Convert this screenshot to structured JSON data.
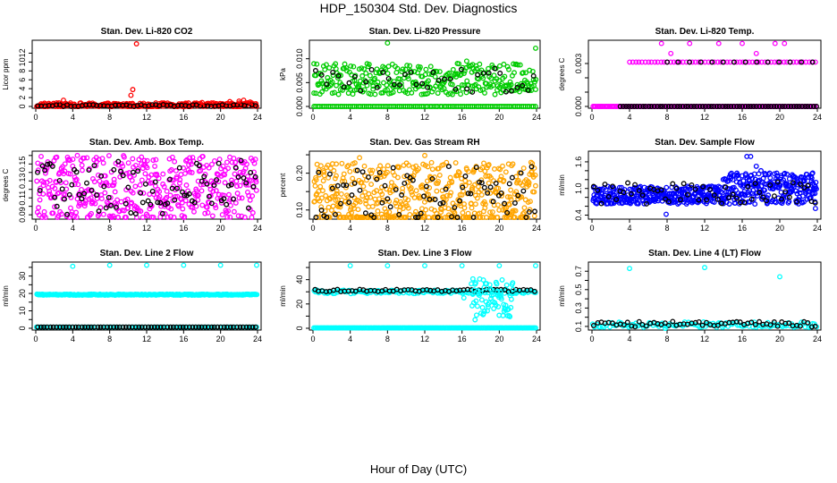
{
  "page": {
    "title": "HDP_150304  Std. Dev. Diagnostics",
    "xlabel": "Hour of Day (UTC)"
  },
  "chart_data": [
    {
      "type": "scatter",
      "title": "Stan. Dev. Li-820 CO2",
      "ylabel": "Licor ppm",
      "color": "#ff0000",
      "xlim": [
        0,
        24
      ],
      "xticks": [
        0,
        4,
        8,
        12,
        16,
        20,
        24
      ],
      "ylim": [
        0,
        14.5
      ],
      "yticks": [
        0,
        2,
        4,
        6,
        8,
        10,
        12
      ],
      "ytick_labels": [
        "0",
        "2",
        "4",
        "6",
        "8",
        "10",
        "12"
      ],
      "series": [
        {
          "name": "base",
          "color": "#ff0000",
          "x_start": 0.1,
          "x_end": 23.9,
          "n": 260,
          "center": 0.3,
          "spread": 0.5
        },
        {
          "name": "black",
          "color": "#000000",
          "x_start": 0.2,
          "x_end": 23.8,
          "n": 60,
          "center": 0.2,
          "spread": 0.2
        }
      ],
      "extra": [
        [
          3.0,
          1.4
        ],
        [
          10.3,
          2.5
        ],
        [
          10.5,
          3.8
        ],
        [
          10.9,
          14.1
        ],
        [
          18.0,
          0.9
        ],
        [
          21.0,
          1.1
        ],
        [
          22.0,
          1.2
        ],
        [
          22.5,
          1.4
        ],
        [
          23.2,
          1.0
        ]
      ]
    },
    {
      "type": "scatter",
      "title": "Stan. Dev. Li-820 Pressure",
      "ylabel": "kPa",
      "color": "#00cc00",
      "xlim": [
        0,
        24
      ],
      "xticks": [
        0,
        4,
        8,
        12,
        16,
        20,
        24
      ],
      "ylim": [
        0,
        0.0135
      ],
      "yticks": [
        0,
        0.005,
        0.01
      ],
      "ytick_labels": [
        "0.000",
        "0.005",
        "0.010"
      ],
      "series": [
        {
          "name": "low",
          "color": "#00cc00",
          "x_start": 0.1,
          "x_end": 23.9,
          "n": 110,
          "center": 0.0,
          "spread": 0.0
        },
        {
          "name": "mid",
          "color": "#00cc00",
          "x_start": 0.1,
          "x_end": 23.9,
          "n": 110,
          "center": 0.0035,
          "spread": 0.001
        },
        {
          "name": "high",
          "color": "#00cc00",
          "x_start": 0.1,
          "x_end": 23.9,
          "n": 230,
          "center": 0.0065,
          "spread": 0.0025
        },
        {
          "name": "black",
          "color": "#000000",
          "x_start": 0.3,
          "x_end": 23.7,
          "n": 40,
          "center": 0.0055,
          "spread": 0.0025
        }
      ],
      "extra": [
        [
          8.0,
          0.0133
        ],
        [
          23.9,
          0.0122
        ],
        [
          16.5,
          0.0095
        ],
        [
          17.5,
          0.0085
        ],
        [
          15.5,
          0.009
        ]
      ]
    },
    {
      "type": "scatter",
      "title": "Stan. Dev. Li-820 Temp.",
      "ylabel": "degrees C",
      "color": "#ff00ff",
      "xlim": [
        0,
        24
      ],
      "xticks": [
        0,
        4,
        8,
        12,
        16,
        20,
        24
      ],
      "ylim": [
        0,
        0.0045
      ],
      "yticks": [
        0,
        0.001,
        0.002,
        0.003
      ],
      "ytick_labels": [
        "0.000",
        "",
        "",
        "0.003"
      ],
      "series": [
        {
          "name": "zero",
          "color": "#ff00ff",
          "x_start": 0.1,
          "x_end": 23.9,
          "n": 160,
          "center": 0.0,
          "spread": 0.0
        },
        {
          "name": "blackzero",
          "color": "#000000",
          "x_start": 3.0,
          "x_end": 23.9,
          "n": 70,
          "center": 0.0,
          "spread": 0.0
        },
        {
          "name": "level",
          "color": "#ff00ff",
          "x_start": 4.0,
          "x_end": 23.8,
          "n": 60,
          "center": 0.0031,
          "spread": 0.0
        },
        {
          "name": "blacklevel",
          "color": "#000000",
          "x_start": 8.0,
          "x_end": 23.5,
          "n": 14,
          "center": 0.0031,
          "spread": 0.0
        }
      ],
      "extra": [
        [
          7.4,
          0.0044
        ],
        [
          10.4,
          0.0044
        ],
        [
          16.0,
          0.0044
        ],
        [
          19.5,
          0.0044
        ],
        [
          20.5,
          0.0044
        ],
        [
          8.4,
          0.0037
        ],
        [
          17.5,
          0.0037
        ],
        [
          13.5,
          0.0044
        ]
      ]
    },
    {
      "type": "scatter",
      "title": "Stan. Dev. Amb. Box Temp.",
      "ylabel": "degrees C",
      "color": "#ff00ff",
      "xlim": [
        0,
        24
      ],
      "xticks": [
        0,
        4,
        8,
        12,
        16,
        20,
        24
      ],
      "ylim": [
        0.087,
        0.163
      ],
      "yticks": [
        0.09,
        0.1,
        0.11,
        0.12,
        0.13,
        0.14,
        0.15,
        0.16
      ],
      "ytick_labels": [
        "0.09",
        "",
        "0.11",
        "",
        "0.13",
        "",
        "0.15",
        ""
      ],
      "series": [
        {
          "name": "base",
          "color": "#ff00ff",
          "x_start": 0.1,
          "x_end": 23.9,
          "n": 460,
          "center": 0.122,
          "spread": 0.038
        },
        {
          "name": "black",
          "color": "#000000",
          "x_start": 0.2,
          "x_end": 23.8,
          "n": 90,
          "center": 0.122,
          "spread": 0.032
        }
      ],
      "extra": [
        [
          0.9,
          0.089
        ],
        [
          4.5,
          0.16
        ],
        [
          13.0,
          0.155
        ],
        [
          21.0,
          0.158
        ],
        [
          23.5,
          0.154
        ],
        [
          14.6,
          0.088
        ]
      ]
    },
    {
      "type": "scatter",
      "title": "Stan. Dev. Gas Stream RH",
      "ylabel": "percent",
      "color": "#ffa500",
      "xlim": [
        0,
        24
      ],
      "xticks": [
        0,
        4,
        8,
        12,
        16,
        20,
        24
      ],
      "ylim": [
        0.08,
        0.255
      ],
      "yticks": [
        0.1,
        0.15,
        0.2,
        0.25
      ],
      "ytick_labels": [
        "0.10",
        "",
        "0.20",
        ""
      ],
      "series": [
        {
          "name": "base",
          "color": "#ffa500",
          "x_start": 0.1,
          "x_end": 23.9,
          "n": 520,
          "center": 0.14,
          "spread": 0.09
        },
        {
          "name": "black",
          "color": "#000000",
          "x_start": 0.3,
          "x_end": 23.8,
          "n": 80,
          "center": 0.14,
          "spread": 0.08
        }
      ],
      "extra": [
        [
          12.0,
          0.248
        ],
        [
          21.0,
          0.225
        ],
        [
          4.5,
          0.228
        ],
        [
          2.5,
          0.225
        ],
        [
          5.0,
          0.242
        ],
        [
          16.5,
          0.21
        ]
      ]
    },
    {
      "type": "scatter",
      "title": "Stan. Dev. Sample Flow",
      "ylabel": "ml/min",
      "color": "#0000ff",
      "xlim": [
        0,
        24
      ],
      "xticks": [
        0,
        4,
        8,
        12,
        16,
        20,
        24
      ],
      "ylim": [
        0.35,
        1.8
      ],
      "yticks": [
        0.4,
        0.6,
        0.8,
        1.0,
        1.2,
        1.4,
        1.6
      ],
      "ytick_labels": [
        "0.4",
        "",
        "",
        "1.0",
        "",
        "",
        "1.6"
      ],
      "series": [
        {
          "name": "early",
          "color": "#0000ff",
          "x_start": 0.1,
          "x_end": 14.0,
          "n": 320,
          "center": 0.85,
          "spread": 0.2
        },
        {
          "name": "late",
          "color": "#0000ff",
          "x_start": 14.0,
          "x_end": 23.9,
          "n": 260,
          "center": 1.0,
          "spread": 0.35
        },
        {
          "name": "black",
          "color": "#000000",
          "x_start": 0.2,
          "x_end": 23.8,
          "n": 60,
          "center": 0.9,
          "spread": 0.25
        }
      ],
      "extra": [
        [
          16.5,
          1.72
        ],
        [
          16.9,
          1.72
        ],
        [
          17.5,
          1.5
        ],
        [
          18.0,
          1.4
        ],
        [
          7.9,
          0.42
        ],
        [
          23.8,
          0.55
        ],
        [
          2.0,
          0.66
        ]
      ]
    },
    {
      "type": "scatter",
      "title": "Stan. Dev. Line 2 Flow",
      "ylabel": "ml/min",
      "color": "#00ffff",
      "xlim": [
        0,
        24
      ],
      "xticks": [
        0,
        4,
        8,
        12,
        16,
        20,
        24
      ],
      "ylim": [
        0,
        37
      ],
      "yticks": [
        0,
        5,
        10,
        15,
        20,
        25,
        30,
        35
      ],
      "ytick_labels": [
        "0",
        "",
        "10",
        "",
        "20",
        "",
        "30",
        ""
      ],
      "series": [
        {
          "name": "level",
          "color": "#00ffff",
          "x_start": 0.1,
          "x_end": 23.9,
          "n": 300,
          "center": 19.3,
          "spread": 0.3
        },
        {
          "name": "zero",
          "color": "#00ffff",
          "x_start": 0.1,
          "x_end": 23.9,
          "n": 80,
          "center": 0.7,
          "spread": 0.0
        },
        {
          "name": "blackzero",
          "color": "#000000",
          "x_start": 0.2,
          "x_end": 23.8,
          "n": 70,
          "center": 0.7,
          "spread": 0.0
        }
      ],
      "extra": [
        [
          4.0,
          35.6
        ],
        [
          8.0,
          36.2
        ],
        [
          12.0,
          36.2
        ],
        [
          16.0,
          36.2
        ],
        [
          20.0,
          36.2
        ],
        [
          23.9,
          36.2
        ]
      ]
    },
    {
      "type": "scatter",
      "title": "Stan. Dev. Line 3 Flow",
      "ylabel": "ml/min",
      "color": "#00ffff",
      "xlim": [
        0,
        24
      ],
      "xticks": [
        0,
        4,
        8,
        12,
        16,
        20,
        24
      ],
      "ylim": [
        0,
        53
      ],
      "yticks": [
        0,
        10,
        20,
        30,
        40,
        50
      ],
      "ytick_labels": [
        "0",
        "",
        "20",
        "",
        "40",
        ""
      ],
      "series": [
        {
          "name": "level",
          "color": "#00ffff",
          "x_start": 0.1,
          "x_end": 23.9,
          "n": 150,
          "center": 30.0,
          "spread": 1.5
        },
        {
          "name": "blacklevel",
          "color": "#000000",
          "x_start": 0.2,
          "x_end": 23.8,
          "n": 60,
          "center": 31.0,
          "spread": 1.0
        },
        {
          "name": "zero",
          "color": "#00ffff",
          "x_start": 0.1,
          "x_end": 23.9,
          "n": 200,
          "center": 0.3,
          "spread": 0.0
        },
        {
          "name": "dip",
          "color": "#00ffff",
          "x_start": 17.0,
          "x_end": 21.5,
          "n": 70,
          "center": 25.0,
          "spread": 16.0
        }
      ],
      "extra": [
        [
          4.0,
          51.5
        ],
        [
          8.0,
          51.5
        ],
        [
          12.0,
          51.5
        ],
        [
          16.0,
          51.5
        ],
        [
          20.0,
          51.5
        ],
        [
          23.9,
          51.5
        ],
        [
          17.4,
          7.0
        ],
        [
          18.3,
          12.0
        ],
        [
          16.2,
          25.0
        ],
        [
          19.8,
          30.5
        ]
      ]
    },
    {
      "type": "scatter",
      "title": "Stan. Dev. Line 4 (LT) Flow",
      "ylabel": "ml/min",
      "color": "#00ffff",
      "xlim": [
        0,
        24
      ],
      "xticks": [
        0,
        4,
        8,
        12,
        16,
        20,
        24
      ],
      "ylim": [
        0.08,
        0.78
      ],
      "yticks": [
        0.1,
        0.2,
        0.3,
        0.4,
        0.5,
        0.6,
        0.7
      ],
      "ytick_labels": [
        "0.1",
        "",
        "0.3",
        "",
        "0.5",
        "",
        "0.7"
      ],
      "series": [
        {
          "name": "base",
          "color": "#00ffff",
          "x_start": 0.1,
          "x_end": 23.9,
          "n": 120,
          "center": 0.12,
          "spread": 0.03
        },
        {
          "name": "black",
          "color": "#000000",
          "x_start": 0.2,
          "x_end": 23.8,
          "n": 60,
          "center": 0.125,
          "spread": 0.03
        }
      ],
      "extra": [
        [
          4.0,
          0.73
        ],
        [
          12.0,
          0.74
        ],
        [
          20.0,
          0.64
        ],
        [
          7.8,
          0.08
        ]
      ]
    }
  ]
}
